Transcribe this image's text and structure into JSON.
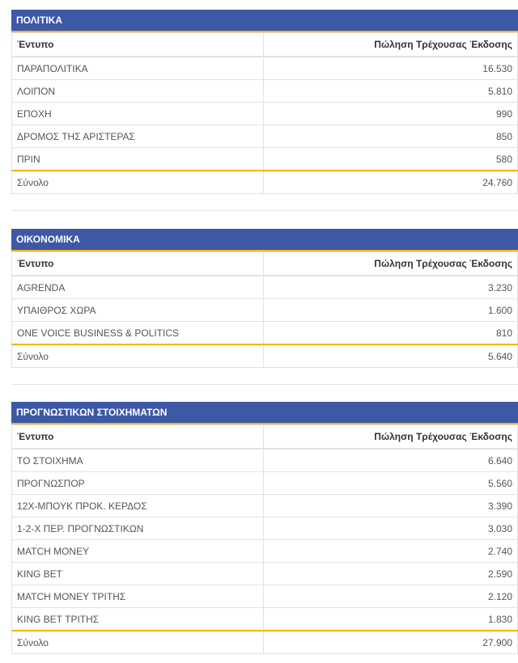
{
  "sections": [
    {
      "title": "ΠΟΛΙΤΙΚΑ",
      "col_left": "Έντυπο",
      "col_right": "Πώληση Τρέχουσας Έκδοσης",
      "rows": [
        {
          "name": "ΠΑΡΑΠΟΛΙΤΙΚΑ",
          "value": "16.530"
        },
        {
          "name": "ΛΟΙΠΟΝ",
          "value": "5.810"
        },
        {
          "name": "ΕΠΟΧΗ",
          "value": "990"
        },
        {
          "name": "ΔΡΟΜΟΣ ΤΗΣ ΑΡΙΣΤΕΡΑΣ",
          "value": "850"
        },
        {
          "name": "ΠΡΙΝ",
          "value": "580"
        }
      ],
      "total_label": "Σύνολο",
      "total_value": "24.760"
    },
    {
      "title": "ΟΙΚΟΝΟΜΙΚΑ",
      "col_left": "Έντυπο",
      "col_right": "Πώληση Τρέχουσας Έκδοσης",
      "rows": [
        {
          "name": "AGRENDA",
          "value": "3.230"
        },
        {
          "name": "ΥΠΑΙΘΡΟΣ ΧΩΡΑ",
          "value": "1.600"
        },
        {
          "name": "ONE VOICE BUSINESS & POLITICS",
          "value": "810"
        }
      ],
      "total_label": "Σύνολο",
      "total_value": "5.640"
    },
    {
      "title": "ΠΡΟΓΝΩΣΤΙΚΩΝ ΣΤΟΙΧΗΜΑΤΩΝ",
      "col_left": "Έντυπο",
      "col_right": "Πώληση Τρέχουσας Έκδοσης",
      "rows": [
        {
          "name": "ΤΟ ΣΤΟΙΧΗΜΑ",
          "value": "6.640"
        },
        {
          "name": "ΠΡΟΓΝΩΣΠΟΡ",
          "value": "5.560"
        },
        {
          "name": "12Χ-ΜΠΟΥΚ ΠΡΟΚ. ΚΕΡΔΟΣ",
          "value": "3.390"
        },
        {
          "name": "1-2-Χ ΠΕΡ. ΠΡΟΓΝΩΣΤΙΚΩΝ",
          "value": "3.030"
        },
        {
          "name": "MATCH MONEY",
          "value": "2.740"
        },
        {
          "name": "KING BET",
          "value": "2.590"
        },
        {
          "name": "MATCH MONEY ΤΡΙΤΗΣ",
          "value": "2.120"
        },
        {
          "name": "KING BET ΤΡΙΤΗΣ",
          "value": "1.830"
        }
      ],
      "total_label": "Σύνολο",
      "total_value": "27.900"
    }
  ],
  "colors": {
    "header_bg": "#3d58a5",
    "accent": "#f4b41a",
    "border": "#e2e2e2"
  }
}
